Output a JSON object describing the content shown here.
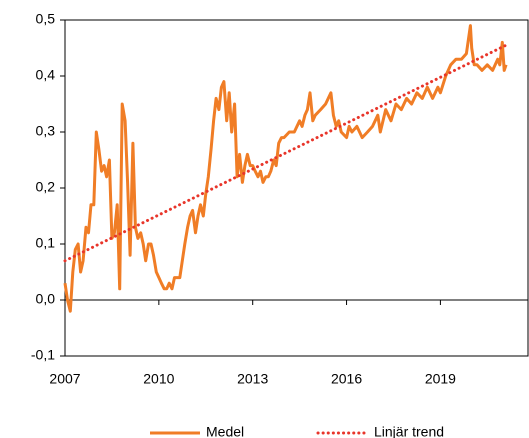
{
  "chart_data": {
    "type": "line",
    "series": [
      {
        "name": "Medel",
        "color": "#f07d26",
        "style": "solid",
        "x": [
          2007.0,
          2007.08,
          2007.17,
          2007.25,
          2007.33,
          2007.42,
          2007.5,
          2007.58,
          2007.67,
          2007.75,
          2007.83,
          2007.92,
          2008.0,
          2008.08,
          2008.17,
          2008.25,
          2008.33,
          2008.42,
          2008.5,
          2008.58,
          2008.67,
          2008.75,
          2008.83,
          2008.92,
          2009.0,
          2009.08,
          2009.17,
          2009.25,
          2009.33,
          2009.42,
          2009.5,
          2009.58,
          2009.67,
          2009.75,
          2009.83,
          2009.92,
          2010.0,
          2010.08,
          2010.17,
          2010.25,
          2010.33,
          2010.42,
          2010.5,
          2010.58,
          2010.67,
          2010.75,
          2010.83,
          2010.92,
          2011.0,
          2011.08,
          2011.17,
          2011.25,
          2011.33,
          2011.42,
          2011.5,
          2011.58,
          2011.67,
          2011.75,
          2011.83,
          2011.92,
          2012.0,
          2012.08,
          2012.17,
          2012.25,
          2012.33,
          2012.42,
          2012.5,
          2012.58,
          2012.67,
          2012.75,
          2012.83,
          2012.92,
          2013.0,
          2013.08,
          2013.17,
          2013.25,
          2013.33,
          2013.42,
          2013.5,
          2013.58,
          2013.67,
          2013.75,
          2013.83,
          2013.92,
          2014.0,
          2014.17,
          2014.33,
          2014.5,
          2014.58,
          2014.67,
          2014.75,
          2014.83,
          2014.92,
          2015.0,
          2015.17,
          2015.33,
          2015.5,
          2015.58,
          2015.67,
          2015.75,
          2015.83,
          2016.0,
          2016.08,
          2016.17,
          2016.33,
          2016.5,
          2016.67,
          2016.83,
          2017.0,
          2017.08,
          2017.25,
          2017.42,
          2017.58,
          2017.75,
          2017.92,
          2018.08,
          2018.25,
          2018.42,
          2018.58,
          2018.75,
          2018.92,
          2019.0,
          2019.17,
          2019.33,
          2019.5,
          2019.67,
          2019.83,
          2019.96,
          2020.0,
          2020.08,
          2020.17,
          2020.33,
          2020.5,
          2020.67,
          2020.83,
          2020.9,
          2020.98,
          2021.04,
          2021.1
        ],
        "values": [
          0.03,
          0.0,
          -0.02,
          0.05,
          0.09,
          0.1,
          0.05,
          0.07,
          0.13,
          0.12,
          0.17,
          0.17,
          0.3,
          0.27,
          0.23,
          0.24,
          0.22,
          0.25,
          0.11,
          0.12,
          0.17,
          0.02,
          0.35,
          0.32,
          0.21,
          0.08,
          0.28,
          0.13,
          0.11,
          0.12,
          0.1,
          0.07,
          0.1,
          0.1,
          0.08,
          0.05,
          0.04,
          0.03,
          0.02,
          0.02,
          0.03,
          0.02,
          0.04,
          0.04,
          0.04,
          0.07,
          0.1,
          0.13,
          0.15,
          0.16,
          0.12,
          0.15,
          0.17,
          0.15,
          0.19,
          0.22,
          0.27,
          0.32,
          0.36,
          0.34,
          0.38,
          0.39,
          0.32,
          0.37,
          0.3,
          0.35,
          0.22,
          0.26,
          0.21,
          0.24,
          0.26,
          0.24,
          0.24,
          0.23,
          0.22,
          0.23,
          0.21,
          0.22,
          0.22,
          0.23,
          0.25,
          0.24,
          0.28,
          0.29,
          0.29,
          0.3,
          0.3,
          0.32,
          0.31,
          0.33,
          0.34,
          0.37,
          0.32,
          0.33,
          0.34,
          0.35,
          0.37,
          0.33,
          0.31,
          0.32,
          0.3,
          0.29,
          0.31,
          0.3,
          0.31,
          0.29,
          0.3,
          0.31,
          0.33,
          0.3,
          0.34,
          0.32,
          0.35,
          0.34,
          0.36,
          0.35,
          0.37,
          0.36,
          0.38,
          0.36,
          0.38,
          0.37,
          0.4,
          0.42,
          0.43,
          0.43,
          0.44,
          0.49,
          0.45,
          0.42,
          0.42,
          0.41,
          0.42,
          0.41,
          0.43,
          0.42,
          0.46,
          0.41,
          0.42
        ]
      },
      {
        "name": "Linjär trend",
        "color": "#e8352a",
        "style": "dotted",
        "x": [
          2007.0,
          2021.1
        ],
        "values": [
          0.07,
          0.455
        ]
      }
    ],
    "xlim": [
      2007,
      2021.8
    ],
    "xticks": [
      2007,
      2010,
      2013,
      2016,
      2019
    ],
    "ylim": [
      -0.1,
      0.5
    ],
    "yticks": [
      {
        "value": -0.1,
        "label": "-0,1"
      },
      {
        "value": 0,
        "label": "0,0"
      },
      {
        "value": 0.1,
        "label": "0,1"
      },
      {
        "value": 0.2,
        "label": "0,2"
      },
      {
        "value": 0.3,
        "label": "0,3"
      },
      {
        "value": 0.4,
        "label": "0,4"
      },
      {
        "value": 0.5,
        "label": "0,5"
      }
    ],
    "legend": "bottom"
  }
}
